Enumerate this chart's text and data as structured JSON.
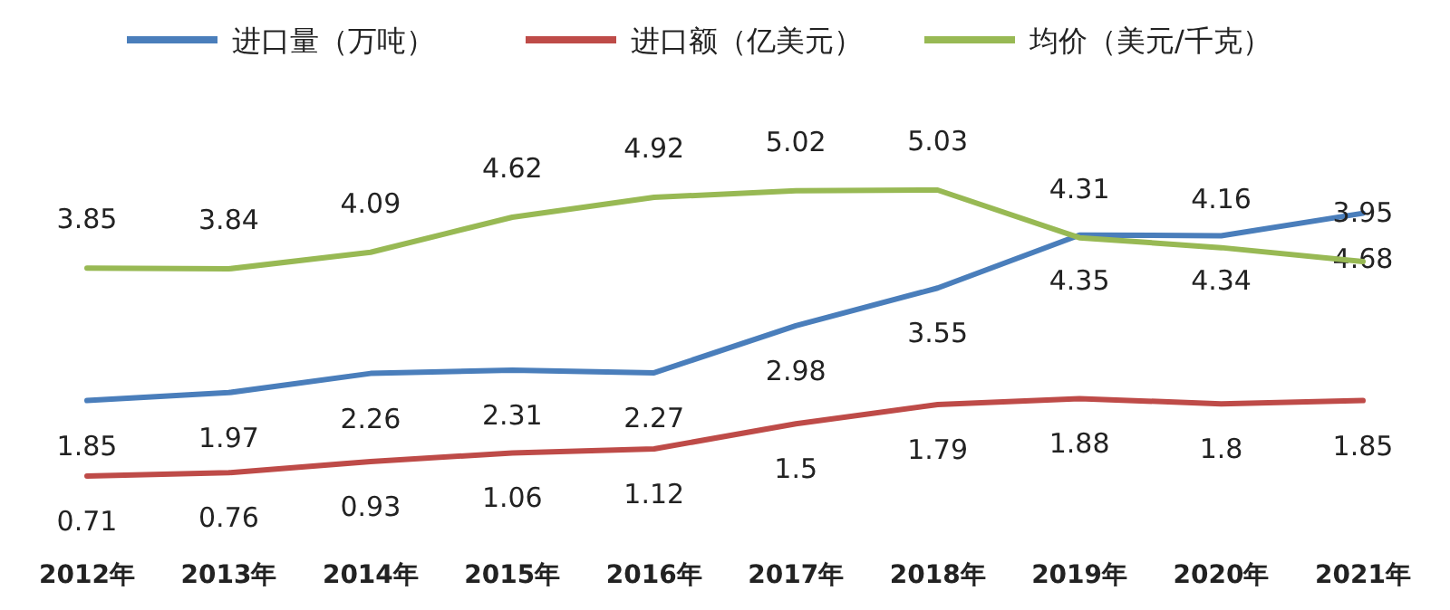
{
  "chart_data": {
    "type": "line",
    "categories": [
      "2012年",
      "2013年",
      "2014年",
      "2015年",
      "2016年",
      "2017年",
      "2018年",
      "2019年",
      "2020年",
      "2021年"
    ],
    "series": [
      {
        "name": "进口量（万吨）",
        "color": "#4a7ebb",
        "values": [
          1.85,
          1.97,
          2.26,
          2.31,
          2.27,
          2.98,
          3.55,
          4.35,
          4.34,
          4.68
        ]
      },
      {
        "name": "进口额（亿美元）",
        "color": "#be4b48",
        "values": [
          0.71,
          0.76,
          0.93,
          1.06,
          1.12,
          1.5,
          1.79,
          1.88,
          1.8,
          1.85
        ]
      },
      {
        "name": "均价（美元/千克）",
        "color": "#98b954",
        "values": [
          3.85,
          3.84,
          4.09,
          4.62,
          4.92,
          5.02,
          5.03,
          4.31,
          4.16,
          3.95
        ]
      }
    ],
    "data_labels": true,
    "legend": "top",
    "tick_labels": "x",
    "marker": "none",
    "line_style": "solid"
  }
}
